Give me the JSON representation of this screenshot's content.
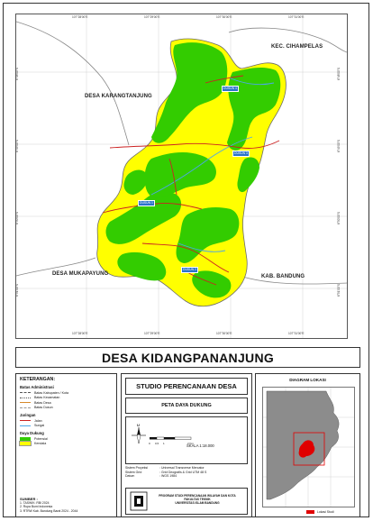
{
  "map": {
    "top_ticks": [
      "107°28'00\"E",
      "107°29'00\"E",
      "107°30'00\"E",
      "107°31'00\"E"
    ],
    "bottom_ticks": [
      "107°28'00\"E",
      "107°29'00\"E",
      "107°30'00\"E",
      "107°31'00\"E"
    ],
    "left_ticks": [
      "6°48'00\"S",
      "6°49'00\"S",
      "6°50'00\"S",
      "6°51'00\"S"
    ],
    "right_ticks": [
      "6°48'00\"S",
      "6°49'00\"S",
      "6°50'00\"S",
      "6°51'00\"S"
    ],
    "labels": {
      "kec_cihampelas": "KEC. CIHAMPELAS",
      "desa_karangtanjung": "DESA KARANGTANJUNG",
      "desa_mukapayung": "DESA MUKAPAYUNG",
      "kab_bandung": "KAB. BANDUNG"
    },
    "dusun": [
      "DUSUN 4",
      "DUSUN 3",
      "DUSUN 1",
      "DUSUN 2"
    ],
    "colors": {
      "potensial": "#33cc00",
      "kendala": "#ffff00",
      "jalan": "#cc2222",
      "sungai": "#4da6e8",
      "batas_desa": "#d68a2c"
    }
  },
  "title": "DESA KIDANGPANANJUNG",
  "legend": {
    "heading": "KETERANGAN:",
    "batas_heading": "Batas Administrasi",
    "batas_items": [
      "Batas Kabupaten / Kota",
      "Batas Kecamatan",
      "Batas Desa",
      "Batas Dusun"
    ],
    "jaringan_heading": "Jaringan",
    "jaringan_items": [
      "Jalan",
      "Sungai"
    ],
    "daya_heading": "Daya Dukung",
    "daya_items": [
      "Potensial",
      "Kendala"
    ],
    "sumber_heading": "SUMBER :",
    "sumber_items": [
      "1. TASWIK: RBI 2024",
      "2. Rupa Bumi Indonesia",
      "3. RTRW Kab. Bandung Barat 2024 - 2044"
    ]
  },
  "center": {
    "studio": "STUDIO PERENCANAAN DESA",
    "peta": "PETA DAYA DUKUNG",
    "compass": "U",
    "skala": "SKALA 1:18.000",
    "scale_ticks": [
      "0",
      "0,5",
      "1",
      "2 Km"
    ],
    "system": [
      {
        "k": "Sistem Proyeksi",
        "v": ": Universal Transverse Mercator"
      },
      {
        "k": "Sistem Grid",
        "v": ": Grid Geografis & Grid UTM 48 S"
      },
      {
        "k": "Datum",
        "v": ": WGS 1984"
      }
    ],
    "institution": [
      "PROGRAM STUDI PERENCANAAN WILAYAH DAN KOTA",
      "FAKULTAS TEKNIK",
      "UNIVERSITAS ISLAM BANDUNG"
    ]
  },
  "inset": {
    "heading": "DIAGRAM LOKASI",
    "legend": "Lokasi Studi",
    "colors": {
      "region": "#8c8c8c",
      "lokasi": "#e00000"
    }
  }
}
